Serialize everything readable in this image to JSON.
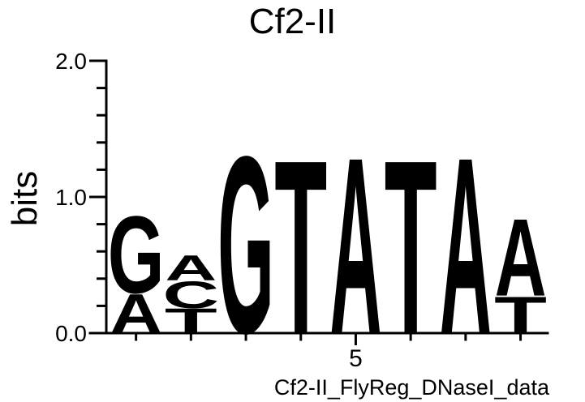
{
  "chart_data": {
    "type": "sequence_logo",
    "title": "Cf2-II",
    "ylabel": "bits",
    "xlabel": "",
    "footer_label": "Cf2-II_FlyReg_DNaseI_data",
    "ylim": [
      0,
      2
    ],
    "y_minor_step": 0.2,
    "grid": "off",
    "y_tick_labels": [
      {
        "value": 0.0,
        "label": "0.0"
      },
      {
        "value": 1.0,
        "label": "1.0"
      },
      {
        "value": 2.0,
        "label": "2.0"
      }
    ],
    "x_tick_labels": [
      {
        "position": 5,
        "label": "5"
      }
    ],
    "colors": {
      "A": "#008000",
      "C": "#0000EE",
      "G": "#FFA500",
      "T": "#FF0000"
    },
    "positions": [
      {
        "index": 1,
        "stack": [
          {
            "base": "A",
            "bits": 0.29
          },
          {
            "base": "G",
            "bits": 0.58
          }
        ]
      },
      {
        "index": 2,
        "stack": [
          {
            "base": "T",
            "bits": 0.18
          },
          {
            "base": "C",
            "bits": 0.2
          },
          {
            "base": "A",
            "bits": 0.19
          }
        ]
      },
      {
        "index": 3,
        "stack": [
          {
            "base": "G",
            "bits": 1.33
          }
        ]
      },
      {
        "index": 4,
        "stack": [
          {
            "base": "T",
            "bits": 1.3
          }
        ]
      },
      {
        "index": 5,
        "stack": [
          {
            "base": "A",
            "bits": 1.32
          }
        ]
      },
      {
        "index": 6,
        "stack": [
          {
            "base": "T",
            "bits": 1.3
          }
        ]
      },
      {
        "index": 7,
        "stack": [
          {
            "base": "A",
            "bits": 1.32
          }
        ]
      },
      {
        "index": 8,
        "stack": [
          {
            "base": "T",
            "bits": 0.27
          },
          {
            "base": "A",
            "bits": 0.58
          }
        ]
      }
    ]
  }
}
